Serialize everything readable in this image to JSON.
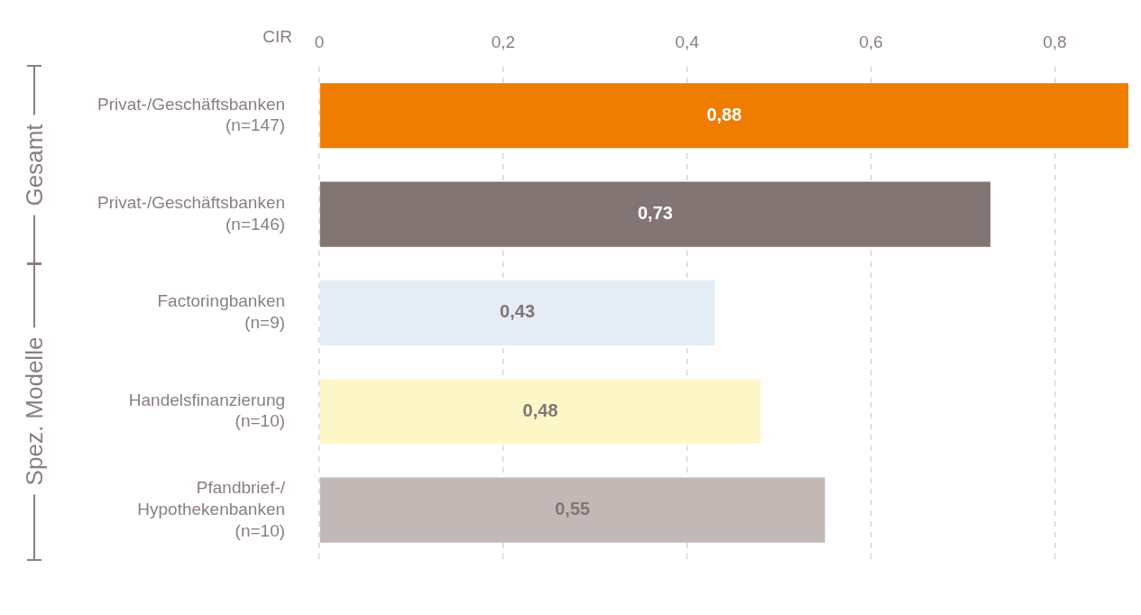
{
  "chart_data": {
    "type": "bar",
    "orientation": "horizontal",
    "xlabel": "CIR",
    "categories": [
      "Privat-/Geschäftsbanken\n(n=147)",
      "Privat-/Geschäftsbanken\n(n=146)",
      "Factoringbanken\n(n=9)",
      "Handelsfinanzierung\n(n=10)",
      "Pfandbrief-/\nHypothekenbanken\n(n=10)"
    ],
    "values": [
      0.88,
      0.73,
      0.43,
      0.48,
      0.55
    ],
    "value_labels": [
      "0,88",
      "0,73",
      "0,43",
      "0,48",
      "0,55"
    ],
    "colors": [
      "#ef7d00",
      "#837573",
      "#e4ecf6",
      "#fdf7c7",
      "#c2b9b7"
    ],
    "xlim": [
      0,
      0.88
    ],
    "xticks": [
      0,
      {
        "value": 0.2,
        "label": "0,2"
      },
      {
        "value": 0.4,
        "label": "0,4"
      },
      {
        "value": 0.6,
        "label": "0,6"
      },
      {
        "value": 0.8,
        "label": "0,8"
      }
    ],
    "grid": "x",
    "legend": false,
    "annotations": [
      "Gesamt",
      "Spez. Modelle"
    ]
  }
}
